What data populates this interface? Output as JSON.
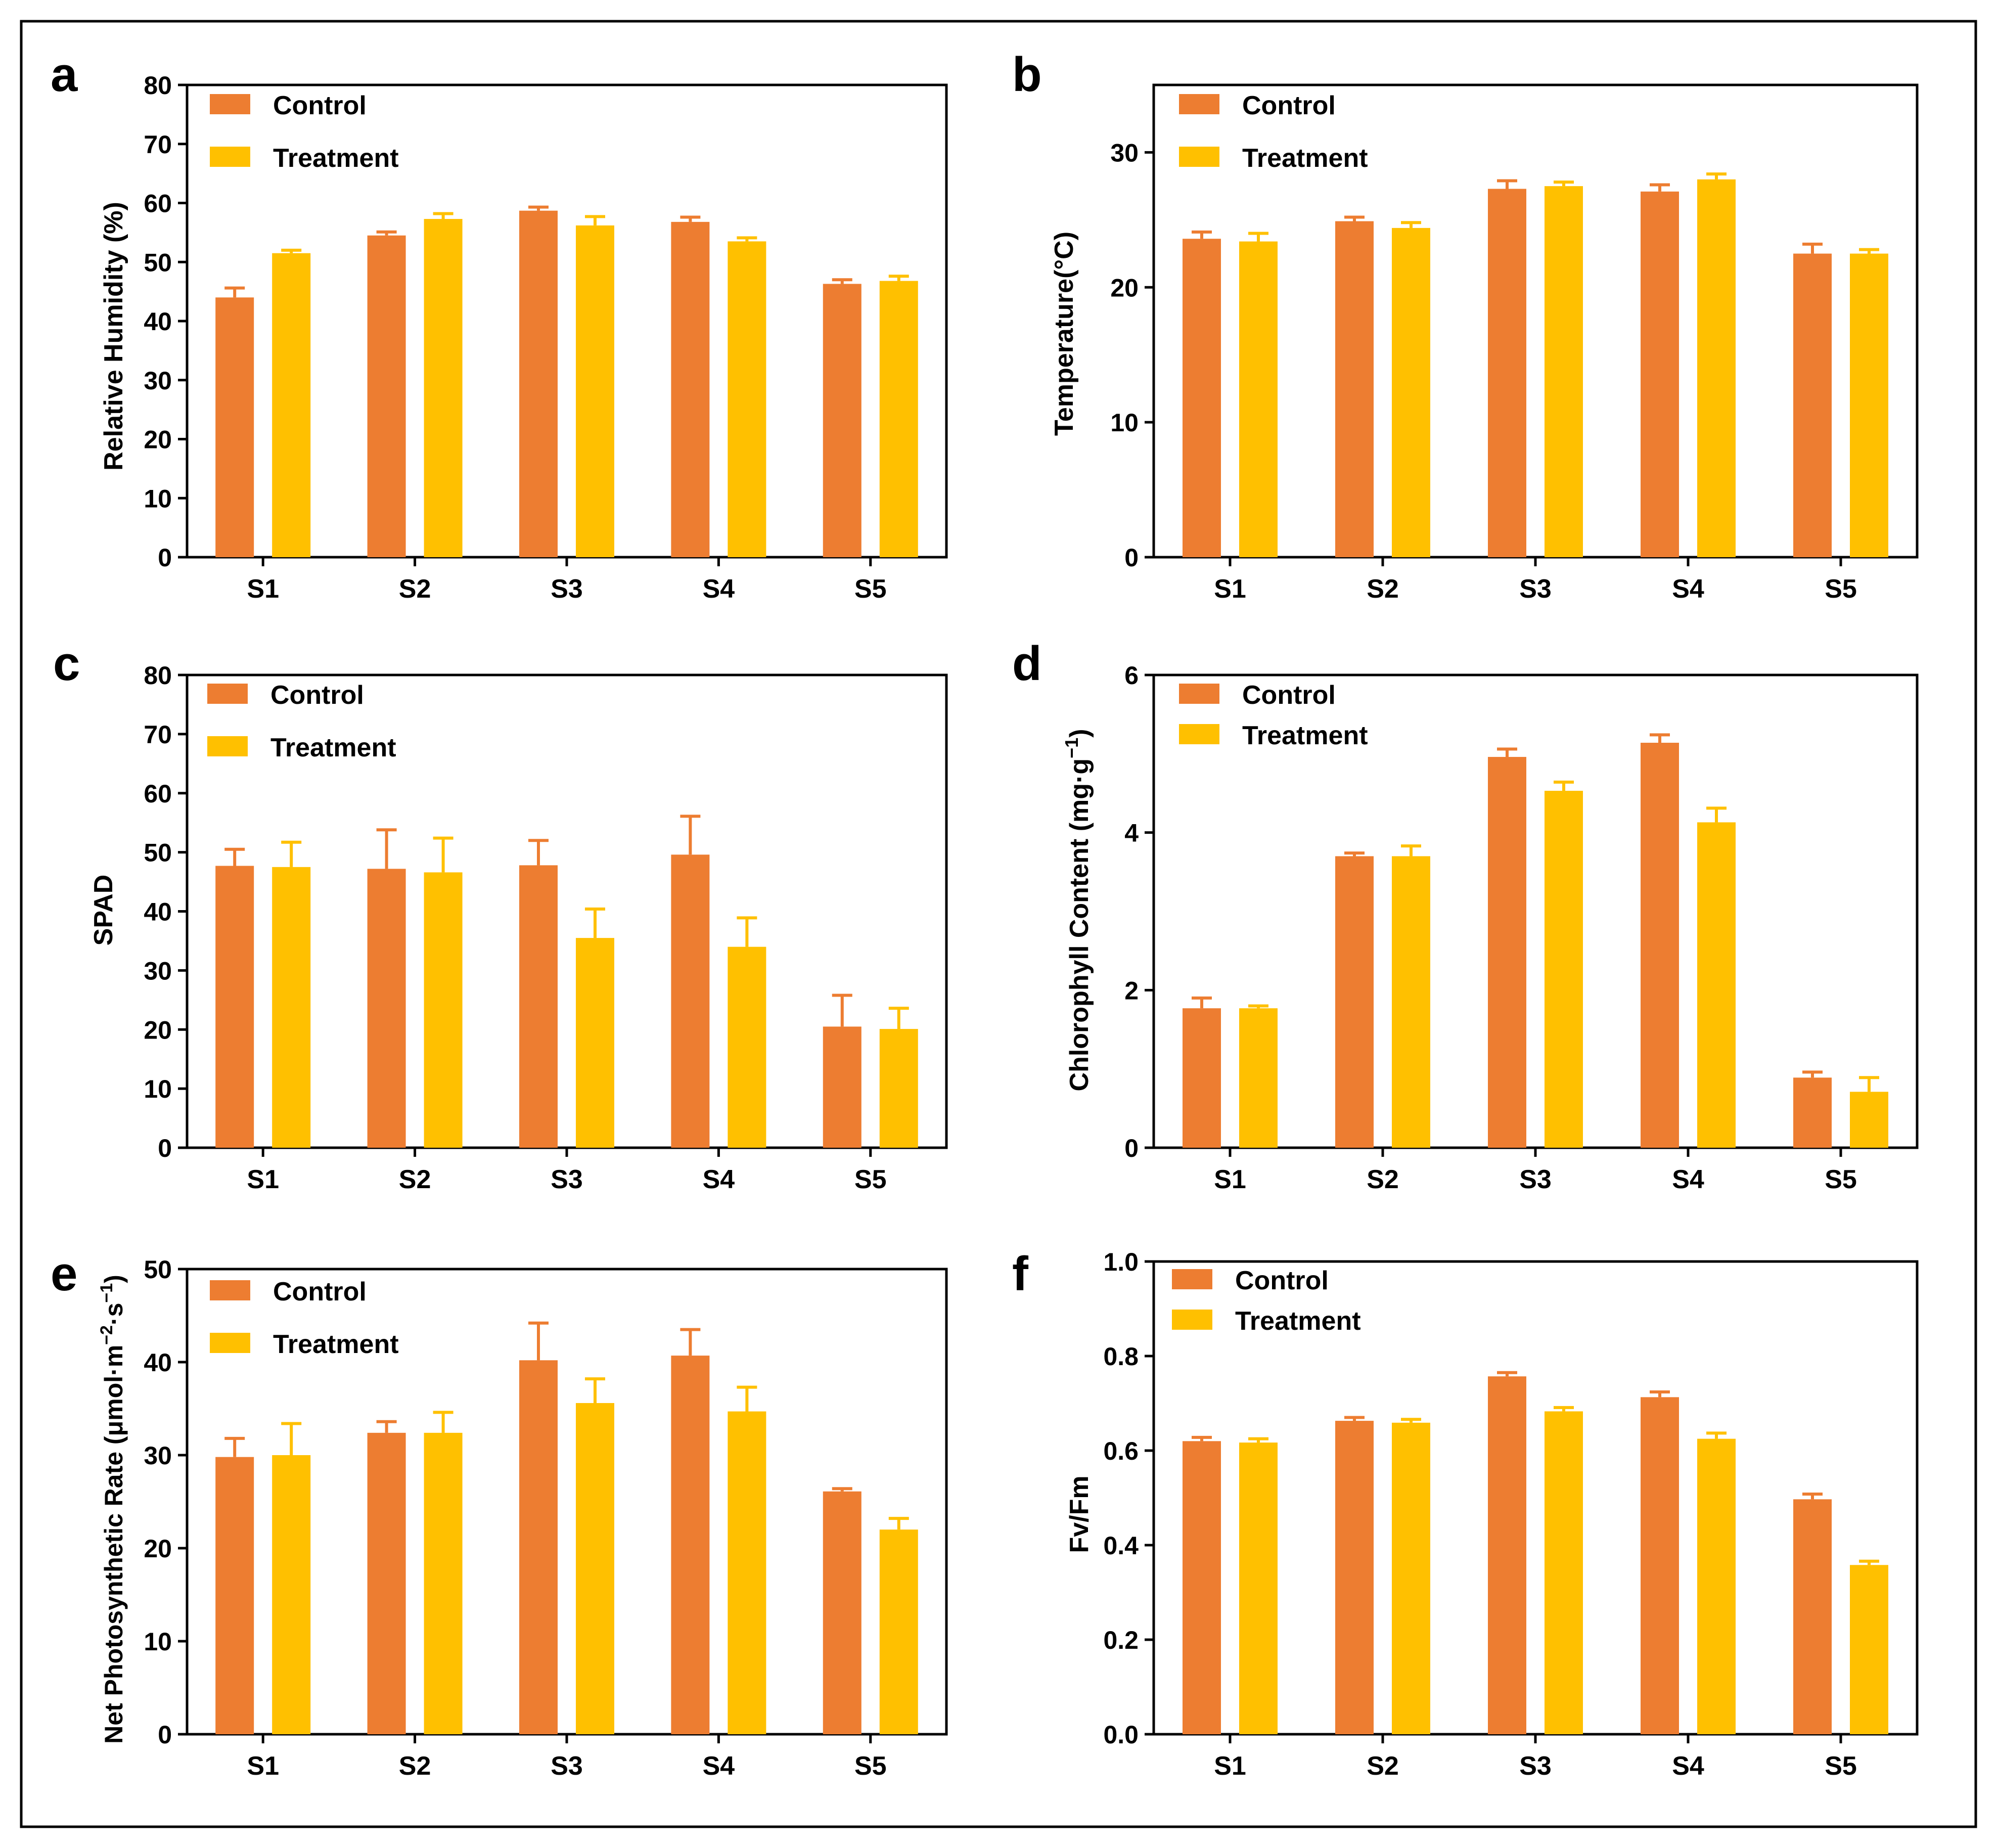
{
  "colors": {
    "control": "#ED7D31",
    "treatment": "#FFC000",
    "axis": "#000000"
  },
  "chart_data": [
    {
      "panel": "a",
      "type": "bar",
      "categories": [
        "S1",
        "S2",
        "S3",
        "S4",
        "S5"
      ],
      "ylabel": "Relative Humidity (%)",
      "ylim": [
        0,
        80
      ],
      "yticks": [
        0,
        10,
        20,
        30,
        40,
        50,
        60,
        70,
        80
      ],
      "decimals": 0,
      "legend": {
        "position": "top-left",
        "entries": [
          "Control",
          "Treatment"
        ]
      },
      "series": [
        {
          "name": "Control",
          "values": [
            44.0,
            54.5,
            58.7,
            56.8,
            46.3
          ],
          "errors": [
            1.6,
            0.6,
            0.6,
            0.8,
            0.7
          ]
        },
        {
          "name": "Treatment",
          "values": [
            51.5,
            57.3,
            56.2,
            53.5,
            46.8
          ],
          "errors": [
            0.5,
            0.9,
            1.5,
            0.6,
            0.8
          ]
        }
      ]
    },
    {
      "panel": "b",
      "type": "bar",
      "categories": [
        "S1",
        "S2",
        "S3",
        "S4",
        "S5"
      ],
      "ylabel": "Temperature(°C)",
      "ylim": [
        0,
        35
      ],
      "yticks": [
        0,
        10,
        20,
        30
      ],
      "decimals": 0,
      "legend": {
        "position": "top-left",
        "entries": [
          "Control",
          "Treatment"
        ]
      },
      "series": [
        {
          "name": "Control",
          "values": [
            23.6,
            24.9,
            27.3,
            27.1,
            22.5
          ],
          "errors": [
            0.5,
            0.3,
            0.6,
            0.5,
            0.7
          ]
        },
        {
          "name": "Treatment",
          "values": [
            23.4,
            24.4,
            27.5,
            28.0,
            22.5
          ],
          "errors": [
            0.6,
            0.4,
            0.3,
            0.4,
            0.3
          ]
        }
      ]
    },
    {
      "panel": "c",
      "type": "bar",
      "categories": [
        "S1",
        "S2",
        "S3",
        "S4",
        "S5"
      ],
      "ylabel": "SPAD",
      "ylim": [
        0,
        80
      ],
      "yticks": [
        0,
        10,
        20,
        30,
        40,
        50,
        60,
        70,
        80
      ],
      "decimals": 0,
      "legend": {
        "position": "top-left",
        "entries": [
          "Control",
          "Treatment"
        ]
      },
      "series": [
        {
          "name": "Control",
          "values": [
            47.7,
            47.2,
            47.8,
            49.6,
            20.5
          ],
          "errors": [
            2.8,
            6.6,
            4.2,
            6.5,
            5.3
          ]
        },
        {
          "name": "Treatment",
          "values": [
            47.5,
            46.6,
            35.5,
            34.0,
            20.1
          ],
          "errors": [
            4.2,
            5.8,
            4.9,
            4.9,
            3.5
          ]
        }
      ]
    },
    {
      "panel": "d",
      "type": "bar",
      "categories": [
        "S1",
        "S2",
        "S3",
        "S4",
        "S5"
      ],
      "ylabel": "Chlorophyll Content (mg·g−1)",
      "ylabel_main": "Chlorophyll Content (mg·g",
      "ylabel_sup": "−1",
      "ylabel_end": ")",
      "ylim": [
        0,
        6
      ],
      "yticks": [
        0,
        2,
        4,
        6
      ],
      "decimals": 0,
      "legend": {
        "position": "top-left",
        "entries": [
          "Control",
          "Treatment"
        ]
      },
      "series": [
        {
          "name": "Control",
          "values": [
            1.77,
            3.7,
            4.96,
            5.14,
            0.89
          ],
          "errors": [
            0.13,
            0.04,
            0.1,
            0.1,
            0.07
          ]
        },
        {
          "name": "Treatment",
          "values": [
            1.77,
            3.7,
            4.53,
            4.13,
            0.71
          ],
          "errors": [
            0.03,
            0.13,
            0.11,
            0.18,
            0.18
          ]
        }
      ]
    },
    {
      "panel": "e",
      "type": "bar",
      "categories": [
        "S1",
        "S2",
        "S3",
        "S4",
        "S5"
      ],
      "ylabel": "Net Photosynthetic Rate (μmol·m−2·s−1)",
      "ylabel_main": "Net Photosynthetic Rate (μmol·m",
      "ylabel_sup1": "−2",
      "ylabel_mid": "·s",
      "ylabel_sup2": "−1",
      "ylabel_end": ")",
      "ylim": [
        0,
        50
      ],
      "yticks": [
        0,
        10,
        20,
        30,
        40,
        50
      ],
      "decimals": 0,
      "legend": {
        "position": "top-left",
        "entries": [
          "Control",
          "Treatment"
        ]
      },
      "series": [
        {
          "name": "Control",
          "values": [
            29.8,
            32.4,
            40.2,
            40.7,
            26.1
          ],
          "errors": [
            2.0,
            1.2,
            4.0,
            2.8,
            0.3
          ]
        },
        {
          "name": "Treatment",
          "values": [
            30.0,
            32.4,
            35.6,
            34.7,
            22.0
          ],
          "errors": [
            3.4,
            2.2,
            2.6,
            2.6,
            1.2
          ]
        }
      ]
    },
    {
      "panel": "f",
      "type": "bar",
      "categories": [
        "S1",
        "S2",
        "S3",
        "S4",
        "S5"
      ],
      "ylabel": "Fv/Fm",
      "ylim": [
        0,
        1.0
      ],
      "yticks": [
        0.0,
        0.2,
        0.4,
        0.6,
        0.8,
        1.0
      ],
      "decimals": 1,
      "legend": {
        "position": "top-left",
        "entries": [
          "Control",
          "Treatment"
        ]
      },
      "series": [
        {
          "name": "Control",
          "values": [
            0.62,
            0.663,
            0.757,
            0.713,
            0.497
          ],
          "errors": [
            0.008,
            0.007,
            0.008,
            0.011,
            0.011
          ]
        },
        {
          "name": "Treatment",
          "values": [
            0.617,
            0.659,
            0.683,
            0.625,
            0.358
          ],
          "errors": [
            0.008,
            0.007,
            0.008,
            0.012,
            0.008
          ]
        }
      ]
    }
  ]
}
